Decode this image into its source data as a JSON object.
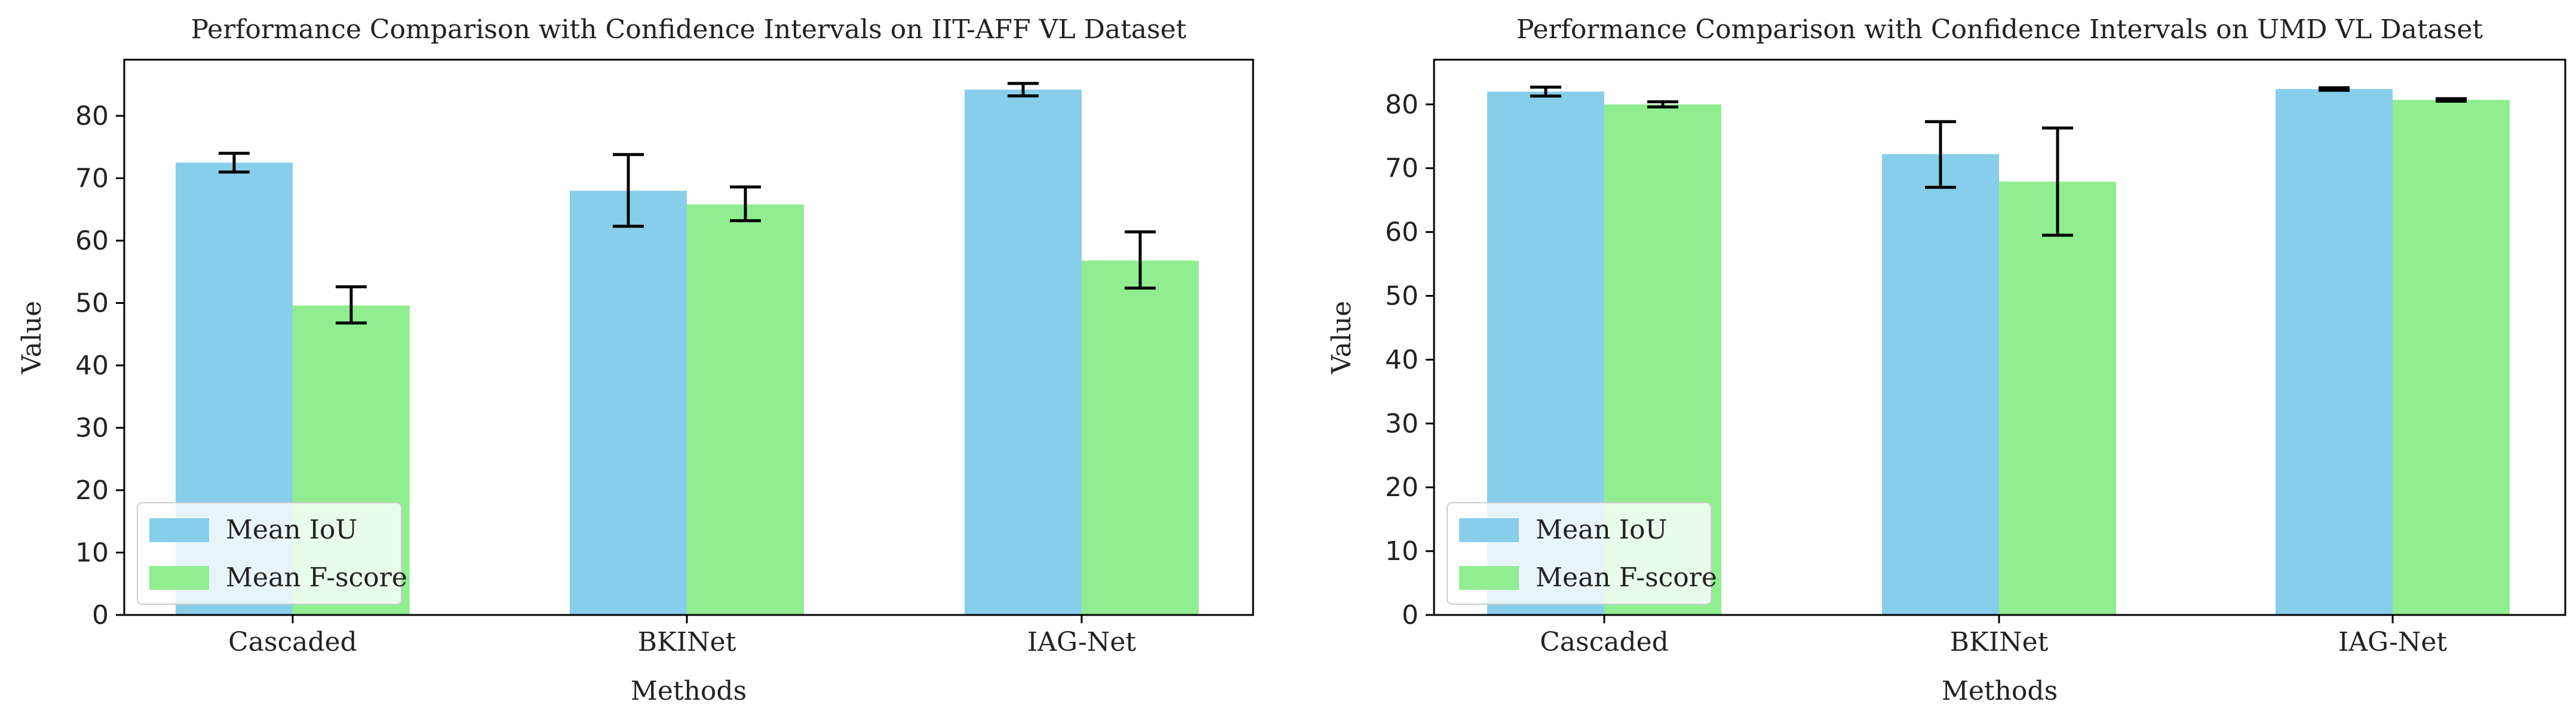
{
  "chart_data": [
    {
      "type": "bar",
      "title": "Performance Comparison with Confidence Intervals on IIT-AFF VL Dataset",
      "xlabel": "Methods",
      "ylabel": "Value",
      "categories": [
        "Cascaded",
        "BKINet",
        "IAG-Net"
      ],
      "ylim": [
        0,
        89
      ],
      "yticks": [
        0,
        10,
        20,
        30,
        40,
        50,
        60,
        70,
        80
      ],
      "series": [
        {
          "name": "Mean IoU",
          "color": "#87CEEB",
          "values": [
            72.5,
            68.0,
            84.2
          ],
          "ci_low": [
            71.0,
            62.3,
            83.2
          ],
          "ci_high": [
            74.0,
            73.8,
            85.2
          ]
        },
        {
          "name": "Mean F-score",
          "color": "#90EE90",
          "values": [
            49.6,
            65.8,
            56.8
          ],
          "ci_low": [
            46.8,
            63.2,
            52.4
          ],
          "ci_high": [
            52.6,
            68.6,
            61.4
          ]
        }
      ],
      "legend": "lower-left"
    },
    {
      "type": "bar",
      "title": "Performance Comparison with Confidence Intervals on UMD VL Dataset",
      "xlabel": "Methods",
      "ylabel": "Value",
      "categories": [
        "Cascaded",
        "BKINet",
        "IAG-Net"
      ],
      "ylim": [
        0,
        87
      ],
      "yticks": [
        0,
        10,
        20,
        30,
        40,
        50,
        60,
        70,
        80
      ],
      "series": [
        {
          "name": "Mean IoU",
          "color": "#87CEEB",
          "values": [
            82.0,
            72.2,
            82.4
          ],
          "ci_low": [
            81.3,
            67.0,
            82.2
          ],
          "ci_high": [
            82.7,
            77.3,
            82.6
          ]
        },
        {
          "name": "Mean F-score",
          "color": "#90EE90",
          "values": [
            80.0,
            67.9,
            80.7
          ],
          "ci_low": [
            79.6,
            59.5,
            80.5
          ],
          "ci_high": [
            80.4,
            76.3,
            80.9
          ]
        }
      ],
      "legend": "lower-left"
    }
  ]
}
